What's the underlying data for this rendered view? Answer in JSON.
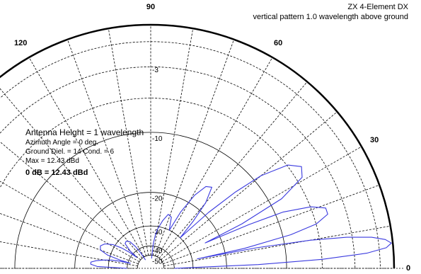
{
  "chart_data": {
    "type": "polar",
    "title": "ZX 4-Element DX",
    "subtitle": "vertical pattern 1.0 wavelength above ground",
    "angle_labels": [
      {
        "angle": 0,
        "label": "0"
      },
      {
        "angle": 30,
        "label": "30"
      },
      {
        "angle": 60,
        "label": "60"
      },
      {
        "angle": 90,
        "label": "90"
      },
      {
        "angle": 120,
        "label": "120"
      }
    ],
    "radial_labels": [
      {
        "db": -3,
        "label": "-3"
      },
      {
        "db": -10,
        "label": "-10"
      },
      {
        "db": -20,
        "label": "-20"
      },
      {
        "db": -30,
        "label": "-30"
      },
      {
        "db": -40,
        "label": "-40"
      },
      {
        "db": -50,
        "label": "-50"
      }
    ],
    "max_gain_dbd": 12.43,
    "pattern_color": "#3a3adf",
    "pattern_points": [
      [
        0,
        -40
      ],
      [
        2,
        -14
      ],
      [
        3,
        -6
      ],
      [
        4,
        -2
      ],
      [
        5,
        -0.5
      ],
      [
        6,
        -0.1
      ],
      [
        7,
        -0.5
      ],
      [
        8,
        -1.5
      ],
      [
        9,
        -3.5
      ],
      [
        10,
        -7
      ],
      [
        11,
        -14
      ],
      [
        11.5,
        -28
      ],
      [
        12,
        -16
      ],
      [
        13.5,
        -9
      ],
      [
        15,
        -6
      ],
      [
        17,
        -4.7
      ],
      [
        19,
        -4.7
      ],
      [
        21,
        -6
      ],
      [
        23,
        -9
      ],
      [
        24,
        -14
      ],
      [
        25,
        -24
      ],
      [
        26,
        -15
      ],
      [
        28,
        -8.5
      ],
      [
        31,
        -5.5
      ],
      [
        34,
        -5
      ],
      [
        37,
        -6
      ],
      [
        40,
        -9
      ],
      [
        42,
        -13
      ],
      [
        44,
        -19
      ],
      [
        46,
        -30
      ],
      [
        48,
        -23
      ],
      [
        50,
        -18
      ],
      [
        53,
        -15
      ],
      [
        56,
        -15.5
      ],
      [
        59,
        -18
      ],
      [
        62,
        -23
      ],
      [
        64,
        -30
      ],
      [
        66,
        -28
      ],
      [
        68,
        -25.5
      ],
      [
        72,
        -25
      ],
      [
        76,
        -27.5
      ],
      [
        80,
        -31
      ],
      [
        82,
        -34
      ],
      [
        84,
        -39
      ],
      [
        85,
        -55
      ]
    ],
    "pattern_points_back": [
      [
        180,
        -40
      ],
      [
        178,
        -26
      ],
      [
        176,
        -24
      ],
      [
        174,
        -24
      ],
      [
        172,
        -25.5
      ],
      [
        170,
        -28
      ],
      [
        168,
        -31
      ],
      [
        167,
        -35
      ],
      [
        166,
        -42
      ],
      [
        165,
        -35
      ],
      [
        163,
        -29
      ],
      [
        160,
        -26
      ],
      [
        156,
        -25.5
      ],
      [
        152,
        -26.5
      ],
      [
        148,
        -29
      ],
      [
        145,
        -33
      ],
      [
        143,
        -38
      ],
      [
        142,
        -45
      ],
      [
        140,
        -38
      ],
      [
        136,
        -33
      ],
      [
        132,
        -32.5
      ],
      [
        128,
        -34
      ],
      [
        125,
        -38
      ],
      [
        123,
        -44
      ],
      [
        122,
        -55
      ]
    ],
    "annotations": {
      "antenna_height": "Antenna Height = 1 wavelength",
      "azimuth": "Azimuth Angle = 0 deg.",
      "ground": "Ground Diel. = 14  Cond. = 6",
      "max": "Max = 12.43 dBd",
      "ref": "0 dB = 12.43 dBd"
    }
  }
}
